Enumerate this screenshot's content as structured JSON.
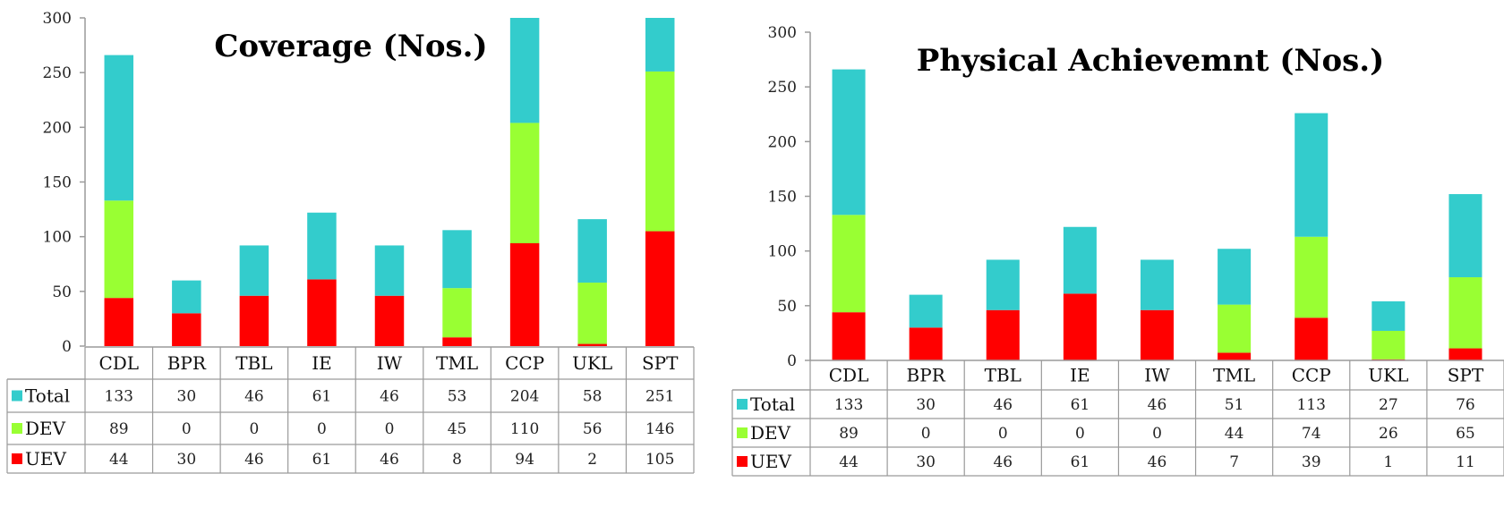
{
  "colors": {
    "Total": "#33CCCC",
    "DEV": "#99FF33",
    "UEV": "#FF0000",
    "axis": "#9a9a9a",
    "grid": "#9a9a9a"
  },
  "chart_data": [
    {
      "type": "bar",
      "stacked": true,
      "title": "Coverage (Nos.)",
      "categories": [
        "CDL",
        "BPR",
        "TBL",
        "IE",
        "IW",
        "TML",
        "CCP",
        "UKL",
        "SPT"
      ],
      "ylim": [
        0,
        300
      ],
      "yticks": [
        0,
        50,
        100,
        150,
        200,
        250,
        300
      ],
      "legend": "data table",
      "series": [
        {
          "name": "Total",
          "values": [
            133,
            30,
            46,
            61,
            46,
            53,
            204,
            58,
            251
          ]
        },
        {
          "name": "DEV",
          "values": [
            89,
            0,
            0,
            0,
            0,
            45,
            110,
            56,
            146
          ]
        },
        {
          "name": "UEV",
          "values": [
            44,
            30,
            46,
            61,
            46,
            8,
            94,
            2,
            105
          ]
        }
      ]
    },
    {
      "type": "bar",
      "stacked": true,
      "title": "Physical Achievemnt (Nos.)",
      "categories": [
        "CDL",
        "BPR",
        "TBL",
        "IE",
        "IW",
        "TML",
        "CCP",
        "UKL",
        "SPT"
      ],
      "ylim": [
        0,
        300
      ],
      "yticks": [
        0,
        50,
        100,
        150,
        200,
        250,
        300
      ],
      "legend": "data table",
      "series": [
        {
          "name": "Total",
          "values": [
            133,
            30,
            46,
            61,
            46,
            51,
            113,
            27,
            76
          ]
        },
        {
          "name": "DEV",
          "values": [
            89,
            0,
            0,
            0,
            0,
            44,
            74,
            26,
            65
          ]
        },
        {
          "name": "UEV",
          "values": [
            44,
            30,
            46,
            61,
            46,
            7,
            39,
            1,
            11
          ]
        }
      ]
    }
  ]
}
